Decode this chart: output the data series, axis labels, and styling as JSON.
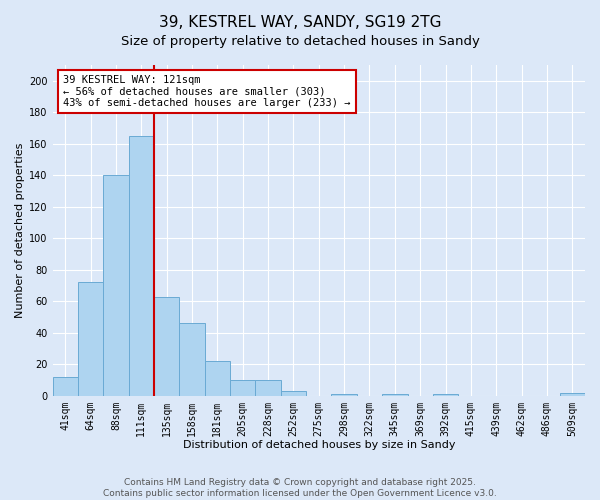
{
  "title": "39, KESTREL WAY, SANDY, SG19 2TG",
  "subtitle": "Size of property relative to detached houses in Sandy",
  "xlabel": "Distribution of detached houses by size in Sandy",
  "ylabel": "Number of detached properties",
  "bar_labels": [
    "41sqm",
    "64sqm",
    "88sqm",
    "111sqm",
    "135sqm",
    "158sqm",
    "181sqm",
    "205sqm",
    "228sqm",
    "252sqm",
    "275sqm",
    "298sqm",
    "322sqm",
    "345sqm",
    "369sqm",
    "392sqm",
    "415sqm",
    "439sqm",
    "462sqm",
    "486sqm",
    "509sqm"
  ],
  "bar_values": [
    12,
    72,
    140,
    165,
    63,
    46,
    22,
    10,
    10,
    3,
    0,
    1,
    0,
    1,
    0,
    1,
    0,
    0,
    0,
    0,
    2
  ],
  "bar_color": "#aed4f0",
  "bar_edge_color": "#6aaad4",
  "ylim": [
    0,
    210
  ],
  "yticks": [
    0,
    20,
    40,
    60,
    80,
    100,
    120,
    140,
    160,
    180,
    200
  ],
  "marker_line_color": "#cc0000",
  "annotation_line1": "39 KESTREL WAY: 121sqm",
  "annotation_line2": "← 56% of detached houses are smaller (303)",
  "annotation_line3": "43% of semi-detached houses are larger (233) →",
  "annotation_box_color": "#ffffff",
  "annotation_box_edge": "#cc0000",
  "background_color": "#dce8f8",
  "footer_text": "Contains HM Land Registry data © Crown copyright and database right 2025.\nContains public sector information licensed under the Open Government Licence v3.0.",
  "title_fontsize": 11,
  "subtitle_fontsize": 9.5,
  "axis_label_fontsize": 8,
  "tick_fontsize": 7,
  "annotation_fontsize": 7.5,
  "footer_fontsize": 6.5
}
